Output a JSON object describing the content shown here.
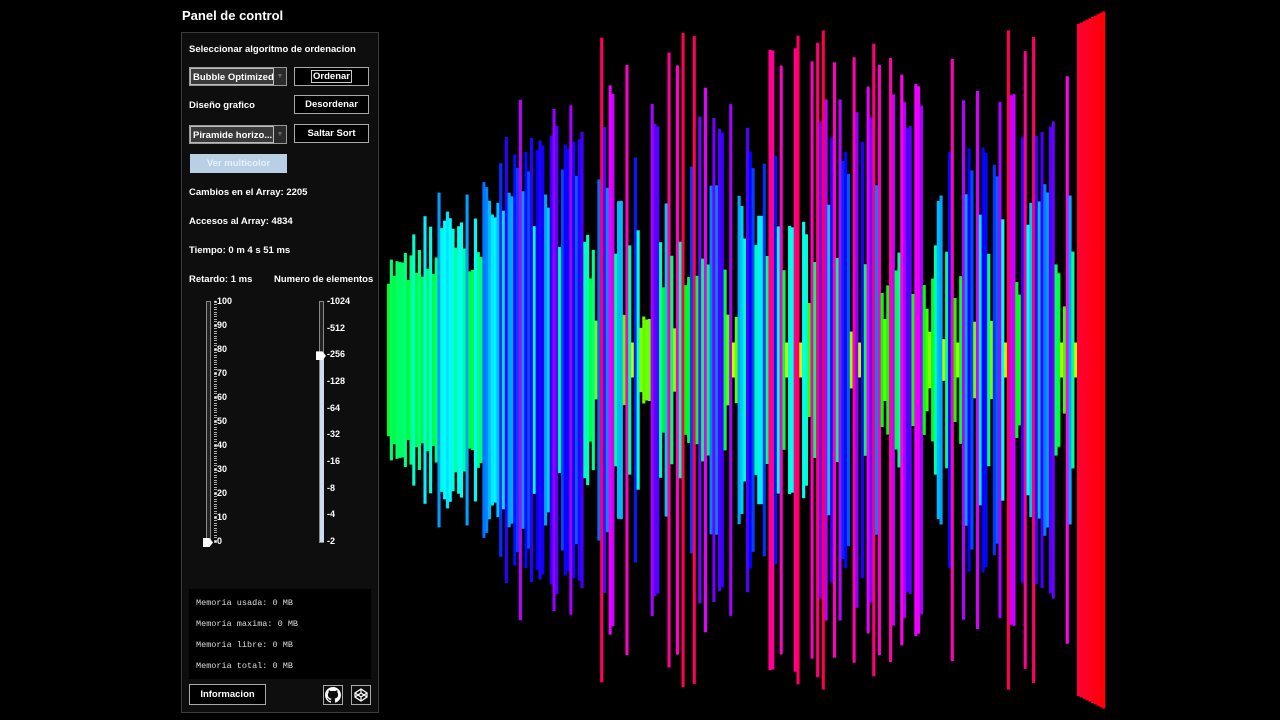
{
  "title": "Panel de control",
  "panel": {
    "select_algorithm_label": "Seleccionar algoritmo de ordenacion",
    "algorithm_value": "Bubble Optimized",
    "sort_button": "Ordenar",
    "design_label": "Diseño grafico",
    "shuffle_button": "Desordenar",
    "design_value": "Piramide horizo...",
    "skip_button": "Saltar Sort",
    "multicolor_button": "Ver multicolor",
    "swaps": "Cambios en el Array: 2205",
    "accesses": "Accesos al Array: 4834",
    "time": "Tiempo: 0 m 4 s 51 ms",
    "delay_label": "Retardo: 1 ms",
    "elements_label": "Numero de elementos",
    "delay_ticks": [
      "100",
      "90",
      "80",
      "70",
      "60",
      "50",
      "40",
      "30",
      "20",
      "10",
      "0"
    ],
    "delay_value": 0,
    "elements_ticks": [
      "1024",
      "512",
      "256",
      "128",
      "64",
      "32",
      "16",
      "8",
      "4",
      "2"
    ],
    "elements_value": 256,
    "memory": [
      "Memoria usada: 0 MB",
      "Memoria maxima: 0 MB",
      "Memoria libre: 0 MB",
      "Memoria total: 0 MB"
    ],
    "info_button": "Informacion",
    "icons": [
      "github-icon",
      "codepen-icon"
    ]
  }
}
